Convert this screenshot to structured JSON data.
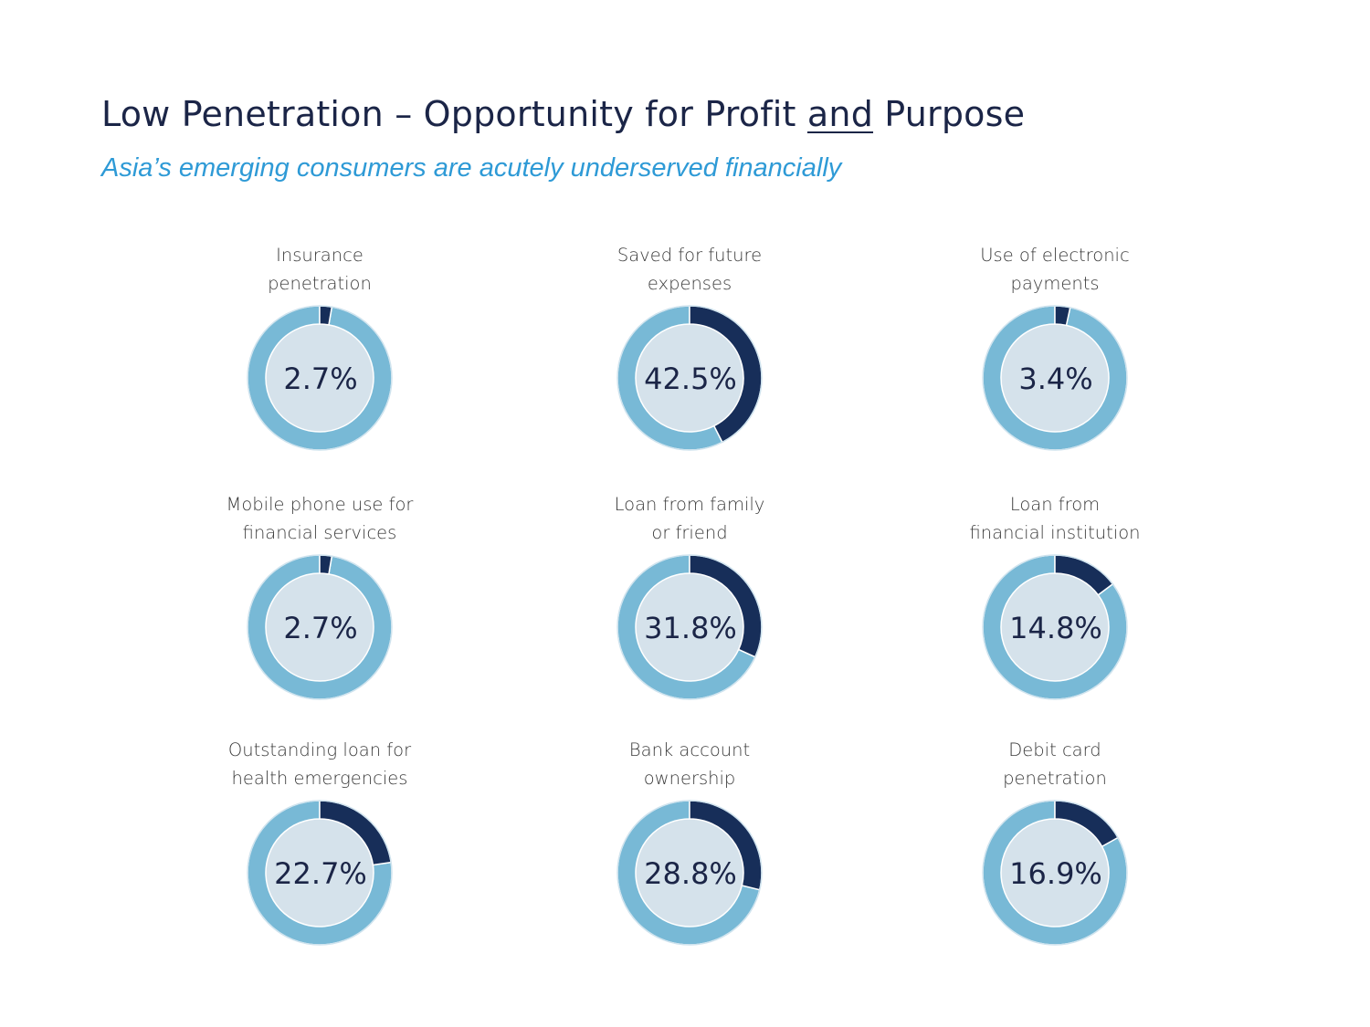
{
  "header": {
    "title_main": "Low Penetration – Opportunity for Profit ",
    "title_underlined": "and",
    "title_end": " Purpose",
    "subtitle": "Asia’s emerging consumers are acutely underserved financially"
  },
  "colors": {
    "filled": "#172e59",
    "remainder": "#78b9d6",
    "inner": "#d5e2eb",
    "title": "#1b2547",
    "subtitle": "#2e9ad6"
  },
  "chart_data": [
    {
      "type": "pie",
      "label_lines": [
        "Insurance",
        "penetration"
      ],
      "value": 2.7,
      "value_label": "2.7%"
    },
    {
      "type": "pie",
      "label_lines": [
        "Saved for future",
        "expenses"
      ],
      "value": 42.5,
      "value_label": "42.5%"
    },
    {
      "type": "pie",
      "label_lines": [
        "Use of electronic",
        "payments"
      ],
      "value": 3.4,
      "value_label": "3.4%"
    },
    {
      "type": "pie",
      "label_lines": [
        "Mobile phone use for",
        "financial services"
      ],
      "value": 2.7,
      "value_label": "2.7%"
    },
    {
      "type": "pie",
      "label_lines": [
        "Loan from family",
        "or friend"
      ],
      "value": 31.8,
      "value_label": "31.8%"
    },
    {
      "type": "pie",
      "label_lines": [
        "Loan from",
        "financial institution"
      ],
      "value": 14.8,
      "value_label": "14.8%"
    },
    {
      "type": "pie",
      "label_lines": [
        "Outstanding loan for",
        "health emergencies"
      ],
      "value": 22.7,
      "value_label": "22.7%"
    },
    {
      "type": "pie",
      "label_lines": [
        "Bank account",
        "ownership"
      ],
      "value": 28.8,
      "value_label": "28.8%"
    },
    {
      "type": "pie",
      "label_lines": [
        "Debit card",
        "penetration"
      ],
      "value": 16.9,
      "value_label": "16.9%"
    }
  ]
}
